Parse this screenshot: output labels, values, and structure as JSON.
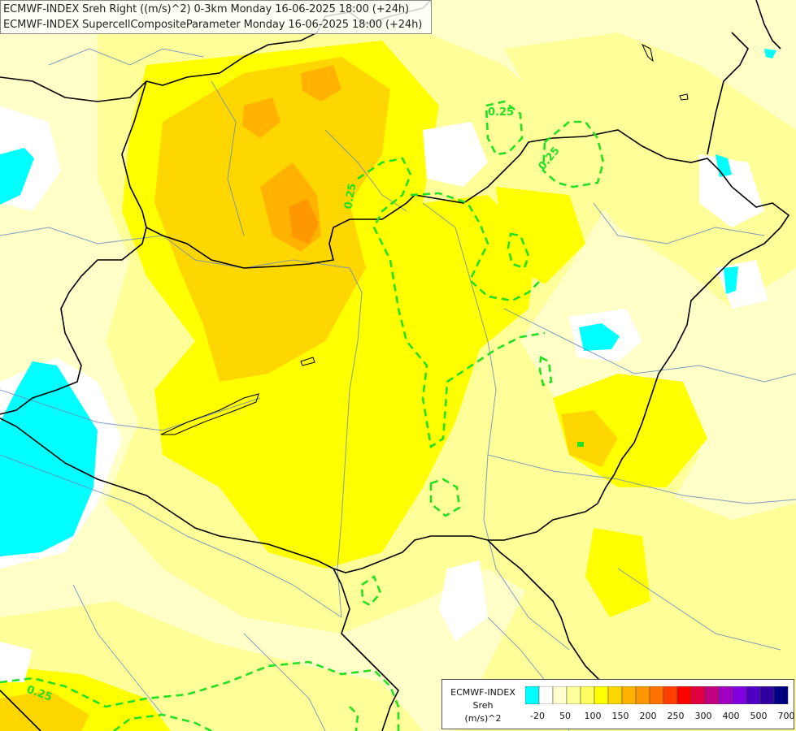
{
  "header": {
    "line1": "ECMWF-INDEX Sreh Right ((m/s)^2) 0-3km Monday 16-06-2025 18:00 (+24h)",
    "line2": "ECMWF-INDEX SupercellCompositeParameter Monday 16-06-2025 18:00 (+24h)"
  },
  "contour_labels": [
    "0.25",
    "0.25",
    "0.25",
    "0.25"
  ],
  "legend": {
    "title_line1": "ECMWF-INDEX",
    "title_line2": "Sreh",
    "title_line3": "(m/s)^2",
    "colors": [
      "#00ffff",
      "#ffffff",
      "#ffffd0",
      "#ffff99",
      "#ffff60",
      "#ffff00",
      "#ffd700",
      "#ffb300",
      "#ff9800",
      "#ff7200",
      "#ff4000",
      "#ff0000",
      "#e00040",
      "#c00080",
      "#a000c0",
      "#8000e0",
      "#5000c0",
      "#3000a0",
      "#000080"
    ],
    "labels": [
      "-20",
      "50",
      "100",
      "150",
      "200",
      "250",
      "300",
      "400",
      "500",
      "700"
    ]
  }
}
